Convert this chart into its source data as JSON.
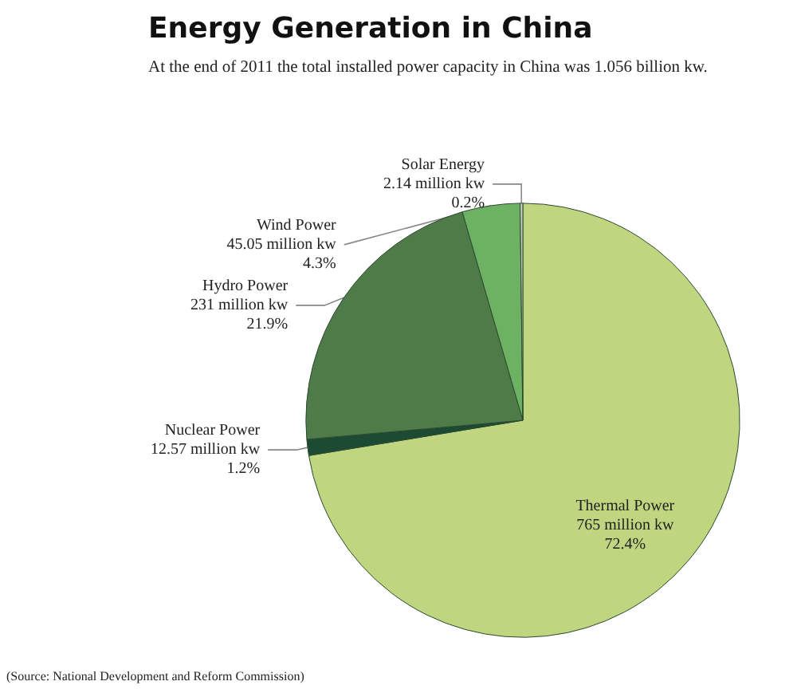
{
  "chart_data": {
    "type": "pie",
    "title": "Energy Generation in China",
    "subtitle": "At the end of 2011 the total installed power capacity in China was 1.056 billion kw.",
    "categories": [
      "Thermal Power",
      "Nuclear Power",
      "Hydro Power",
      "Wind Power",
      "Solar Energy"
    ],
    "values": [
      72.4,
      1.2,
      21.9,
      4.3,
      0.2
    ],
    "value_labels": [
      "765 million kw\n72.4%",
      "12.57 million kw\n1.2%",
      "231 million kw\n21.9%",
      "45.05 million kw\n4.3%",
      "2.14 million kw\n0.2%"
    ],
    "colors": [
      "#bfd57f",
      "#1d4a32",
      "#4f7b48",
      "#6db262",
      "#c9ccc0"
    ],
    "annotations": [
      "(Source: National Development and Reform Commission)"
    ],
    "legend": false
  }
}
